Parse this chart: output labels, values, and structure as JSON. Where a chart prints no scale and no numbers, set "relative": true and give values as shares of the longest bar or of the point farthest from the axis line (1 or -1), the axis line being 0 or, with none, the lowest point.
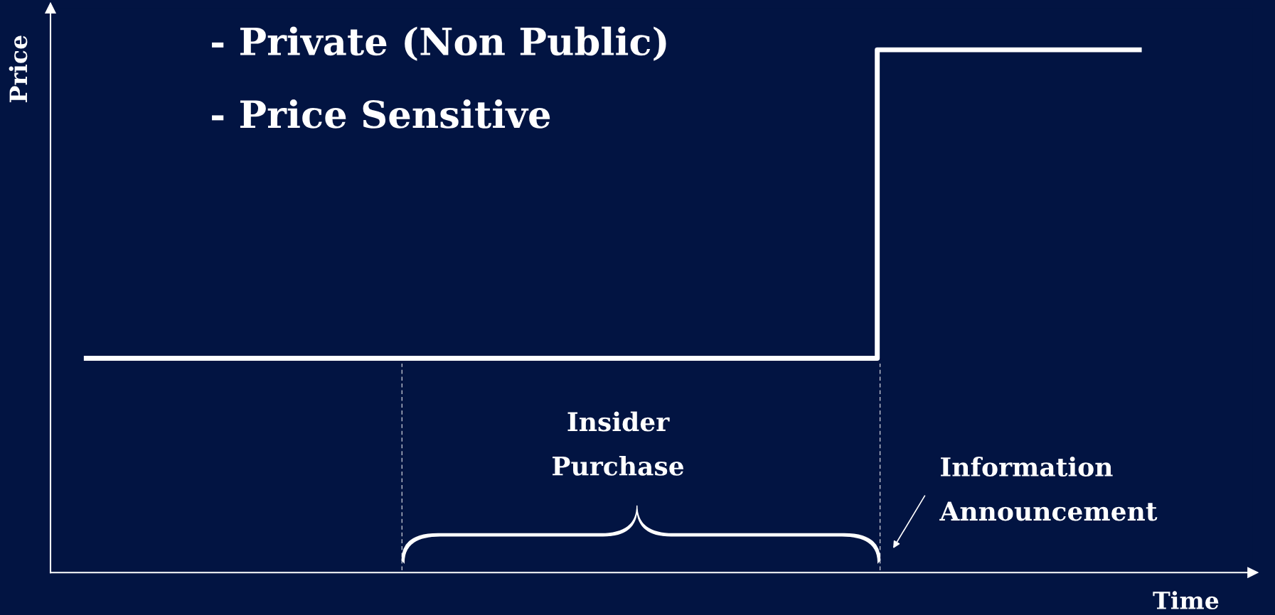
{
  "chart_data": {
    "type": "step",
    "relative": true,
    "xlabel": "Time",
    "ylabel": "Price",
    "categories": [
      null,
      null,
      null,
      null,
      null
    ],
    "series": [
      {
        "color": "#ffffff",
        "values": [
          0.41,
          0.41,
          0.41,
          1,
          1
        ]
      }
    ],
    "annotations": [
      "- Private (Non Public)",
      "- Price Sensitive",
      "Insider\nPurchase",
      "Information\nAnnouncement"
    ]
  }
}
